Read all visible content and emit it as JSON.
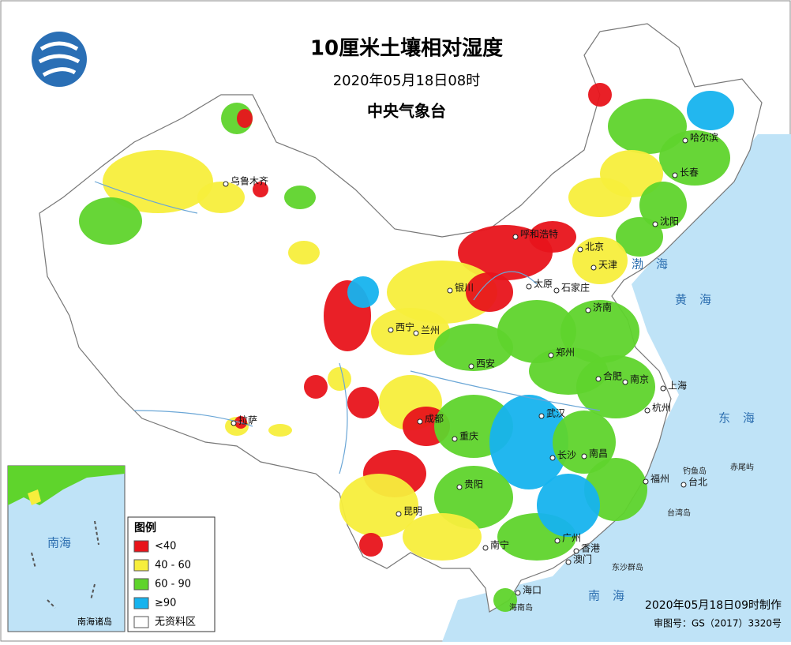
{
  "header": {
    "title": "10厘米土壤相对湿度",
    "time": "2020年05月18日08时",
    "issuer": "中央气象台"
  },
  "legend": {
    "title": "图例",
    "items": [
      {
        "label": "<40",
        "color": "#e8141b"
      },
      {
        "label": "40 - 60",
        "color": "#f7ee3c"
      },
      {
        "label": "60 - 90",
        "color": "#5fd42c"
      },
      {
        "label": "≥90",
        "color": "#16b3ee"
      },
      {
        "label": "无资料区",
        "color": "#ffffff"
      }
    ]
  },
  "cities": [
    "哈尔滨",
    "长春",
    "沈阳",
    "乌鲁木齐",
    "呼和浩特",
    "北京",
    "天津",
    "石家庄",
    "太原",
    "银川",
    "西宁",
    "兰州",
    "济南",
    "郑州",
    "西安",
    "合肥",
    "南京",
    "上海",
    "拉萨",
    "成都",
    "武汉",
    "杭州",
    "重庆",
    "长沙",
    "南昌",
    "福州",
    "贵阳",
    "昆明",
    "台北",
    "南宁",
    "广州",
    "香港",
    "澳门",
    "海口"
  ],
  "islands": [
    "钓鱼岛",
    "赤尾屿",
    "台湾岛",
    "东沙群岛",
    "海南岛"
  ],
  "seas": [
    "渤海",
    "黄海",
    "东海",
    "南海"
  ],
  "inset": {
    "sea": "南海",
    "label": "南海诸岛"
  },
  "footer": {
    "made": "2020年05月18日09时制作",
    "review": "审图号：GS（2017）3320号"
  }
}
